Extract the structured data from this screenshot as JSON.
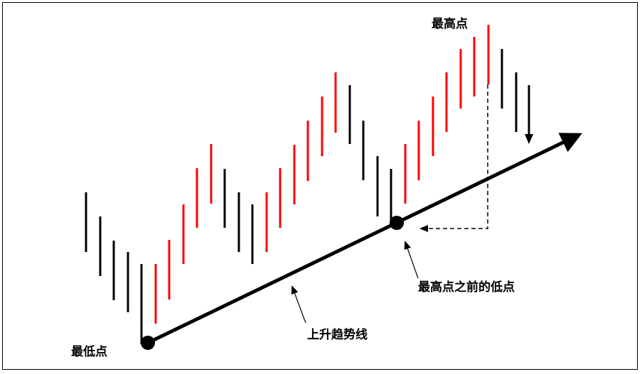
{
  "labels": {
    "lowest_point": "最低点",
    "highest_point": "最高点",
    "low_before_high": "最高点之前的低点",
    "uptrend_line": "上升趋势线"
  },
  "colors": {
    "up_bar": "#ff0000",
    "down_bar": "#000000",
    "line": "#000000"
  },
  "bars": [
    {
      "dir": "down",
      "high": 355,
      "low": 271
    },
    {
      "dir": "down",
      "high": 389,
      "low": 305
    },
    {
      "dir": "down",
      "high": 423,
      "low": 339
    },
    {
      "dir": "down",
      "high": 440,
      "low": 355
    },
    {
      "dir": "down",
      "high": 485,
      "low": 372
    },
    {
      "dir": "up",
      "high": 456,
      "low": 372
    },
    {
      "dir": "up",
      "high": 422,
      "low": 338
    },
    {
      "dir": "up",
      "high": 372,
      "low": 288
    },
    {
      "dir": "up",
      "high": 321,
      "low": 237
    },
    {
      "dir": "up",
      "high": 287,
      "low": 203
    },
    {
      "dir": "down",
      "high": 321,
      "low": 238
    },
    {
      "dir": "down",
      "high": 355,
      "low": 271
    },
    {
      "dir": "down",
      "high": 372,
      "low": 288
    },
    {
      "dir": "up",
      "high": 355,
      "low": 271
    },
    {
      "dir": "up",
      "high": 321,
      "low": 237
    },
    {
      "dir": "up",
      "high": 288,
      "low": 204
    },
    {
      "dir": "up",
      "high": 255,
      "low": 170
    },
    {
      "dir": "up",
      "high": 220,
      "low": 136
    },
    {
      "dir": "up",
      "high": 187,
      "low": 102
    },
    {
      "dir": "down",
      "high": 203,
      "low": 120
    },
    {
      "dir": "down",
      "high": 254,
      "low": 170
    },
    {
      "dir": "down",
      "high": 305,
      "low": 220
    },
    {
      "dir": "down",
      "high": 315,
      "low": 238
    },
    {
      "dir": "up",
      "high": 287,
      "low": 203
    },
    {
      "dir": "up",
      "high": 254,
      "low": 170
    },
    {
      "dir": "up",
      "high": 220,
      "low": 136
    },
    {
      "dir": "up",
      "high": 186,
      "low": 102
    },
    {
      "dir": "up",
      "high": 153,
      "low": 69
    },
    {
      "dir": "up",
      "high": 136,
      "low": 52
    },
    {
      "dir": "up",
      "high": 119,
      "low": 35
    },
    {
      "dir": "down",
      "high": 153,
      "low": 69
    },
    {
      "dir": "down",
      "high": 186,
      "low": 102
    },
    {
      "dir": "down",
      "high": 192,
      "low": 120
    }
  ]
}
